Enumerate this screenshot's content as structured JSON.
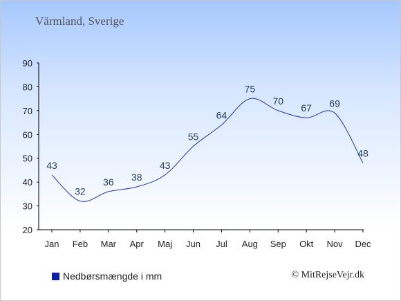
{
  "title": "Värmland, Sverige",
  "legend": {
    "label": "Nedbørsmængde i mm",
    "color": "#0a1fa8"
  },
  "copyright": "© MitRejseVejr.dk",
  "chart_data": {
    "type": "line",
    "categories": [
      "Jan",
      "Feb",
      "Mar",
      "Apr",
      "Maj",
      "Jun",
      "Jul",
      "Aug",
      "Sep",
      "Okt",
      "Nov",
      "Dec"
    ],
    "series": [
      {
        "name": "Nedbørsmængde i mm",
        "values": [
          43,
          32,
          36,
          38,
          43,
          55,
          64,
          75,
          70,
          67,
          69,
          48
        ]
      }
    ],
    "ylim": [
      20,
      90
    ],
    "yticks": [
      20,
      30,
      40,
      50,
      60,
      70,
      80,
      90
    ],
    "line_color": "#2233aa",
    "grid": false,
    "legend_position": "bottom-left"
  }
}
